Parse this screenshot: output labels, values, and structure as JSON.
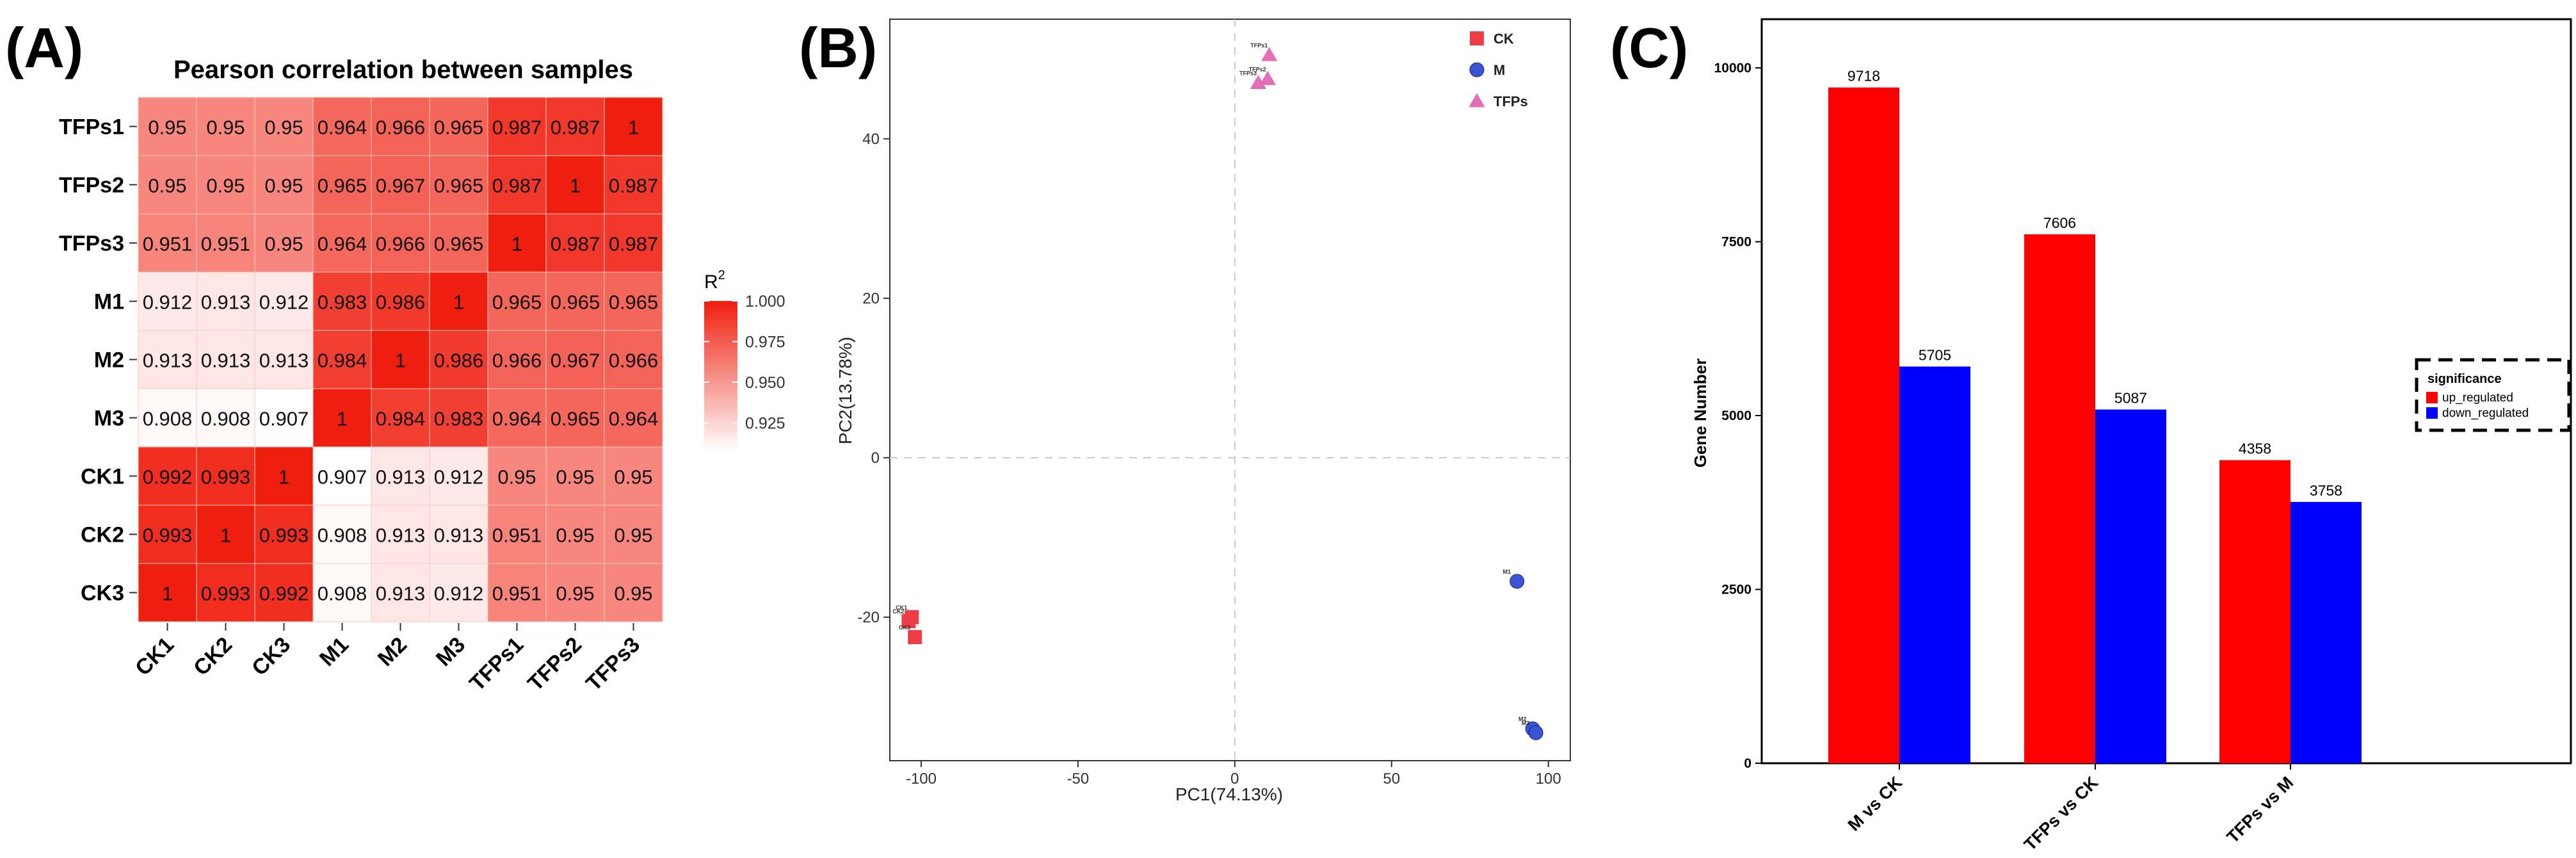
{
  "panels": {
    "a": "(A)",
    "b": "(B)",
    "c": "(C)"
  },
  "colors": {
    "heat_low": "#ffffff",
    "heat_high": "#ef1f0f",
    "ck": "#ee3d46",
    "m": "#3b54d3",
    "tfps": "#e36eb5",
    "up": "#ff0000",
    "down": "#0000ff"
  },
  "chart_data": [
    {
      "type": "heatmap",
      "title": "Pearson correlation between samples",
      "rows": [
        "TFPs1",
        "TFPs2",
        "TFPs3",
        "M1",
        "M2",
        "M3",
        "CK1",
        "CK2",
        "CK3"
      ],
      "columns": [
        "CK1",
        "CK2",
        "CK3",
        "M1",
        "M2",
        "M3",
        "TFPs1",
        "TFPs2",
        "TFPs3"
      ],
      "values": [
        [
          "0.95",
          "0.95",
          "0.95",
          "0.964",
          "0.966",
          "0.965",
          "0.987",
          "0.987",
          "1"
        ],
        [
          "0.95",
          "0.95",
          "0.95",
          "0.965",
          "0.967",
          "0.965",
          "0.987",
          "1",
          "0.987"
        ],
        [
          "0.951",
          "0.951",
          "0.95",
          "0.964",
          "0.966",
          "0.965",
          "1",
          "0.987",
          "0.987"
        ],
        [
          "0.912",
          "0.913",
          "0.912",
          "0.983",
          "0.986",
          "1",
          "0.965",
          "0.965",
          "0.965"
        ],
        [
          "0.913",
          "0.913",
          "0.913",
          "0.984",
          "1",
          "0.986",
          "0.966",
          "0.967",
          "0.966"
        ],
        [
          "0.908",
          "0.908",
          "0.907",
          "1",
          "0.984",
          "0.983",
          "0.964",
          "0.965",
          "0.964"
        ],
        [
          "0.992",
          "0.993",
          "1",
          "0.907",
          "0.913",
          "0.912",
          "0.95",
          "0.95",
          "0.95"
        ],
        [
          "0.993",
          "1",
          "0.993",
          "0.908",
          "0.913",
          "0.913",
          "0.951",
          "0.95",
          "0.95"
        ],
        [
          "1",
          "0.993",
          "0.992",
          "0.908",
          "0.913",
          "0.912",
          "0.951",
          "0.95",
          "0.95"
        ]
      ],
      "colorbar": {
        "title": "R",
        "superscript": "2",
        "range": [
          0.907,
          1.0
        ],
        "ticks": [
          "1.000",
          "0.975",
          "0.950",
          "0.925"
        ]
      }
    },
    {
      "type": "scatter",
      "xlabel": "PC1(74.13%)",
      "ylabel": "PC2(13.78%)",
      "xlim": [
        -110,
        107
      ],
      "ylim": [
        -38,
        55
      ],
      "xticks": [
        -100,
        -50,
        0,
        50,
        100
      ],
      "yticks": [
        -20,
        0,
        20,
        40
      ],
      "xtick_labels": [
        "-100",
        "-50",
        "0",
        "50",
        "100"
      ],
      "ytick_labels": [
        "-20",
        "0",
        "20",
        "40"
      ],
      "reference_lines": {
        "x": 0,
        "y": 0
      },
      "legend": {
        "position": "top-right",
        "entries": [
          "CK",
          "M",
          "TFPs"
        ]
      },
      "series": [
        {
          "name": "CK",
          "shape": "square",
          "points": [
            {
              "label": "CK1",
              "x": -103,
              "y": -20
            },
            {
              "label": "CK2",
              "x": -104,
              "y": -20.5
            },
            {
              "label": "CK3",
              "x": -102,
              "y": -22.5
            }
          ]
        },
        {
          "name": "M",
          "shape": "circle",
          "points": [
            {
              "label": "M1",
              "x": 90,
              "y": -15.5
            },
            {
              "label": "M2",
              "x": 95,
              "y": -34
            },
            {
              "label": "M3",
              "x": 96,
              "y": -34.5
            }
          ]
        },
        {
          "name": "TFPs",
          "shape": "triangle",
          "points": [
            {
              "label": "TFPs1",
              "x": 11,
              "y": 50.5
            },
            {
              "label": "TFPs2",
              "x": 10.5,
              "y": 47.5
            },
            {
              "label": "TFPs3",
              "x": 7.5,
              "y": 47
            }
          ]
        }
      ]
    },
    {
      "type": "bar",
      "ylabel": "Gene Number",
      "categories": [
        "M vs CK",
        "TFPs vs CK",
        "TFPs vs M"
      ],
      "ylim": [
        0,
        10700
      ],
      "yticks": [
        0,
        2500,
        5000,
        7500,
        10000
      ],
      "ytick_labels": [
        "0",
        "2500",
        "5000",
        "7500",
        "10000"
      ],
      "series": [
        {
          "name": "up_regulated",
          "values": [
            9718,
            7606,
            4358
          ]
        },
        {
          "name": "down_regulated",
          "values": [
            5705,
            5087,
            3758
          ]
        }
      ],
      "legend": {
        "title": "significance",
        "position": "right",
        "entries": [
          "up_regulated",
          "down_regulated"
        ]
      }
    }
  ]
}
